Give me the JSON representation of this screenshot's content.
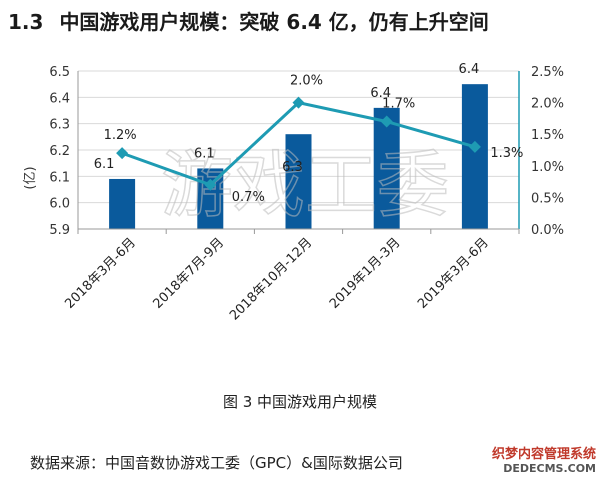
{
  "heading": {
    "number": "1.3",
    "text": "中国游戏用户规模：突破 6.4 亿，仍有上升空间"
  },
  "caption": "图 3  中国游戏用户规模",
  "source": "数据来源：中国音数协游戏工委（GPC）&国际数据公司",
  "watermark": {
    "center": "游戏工委",
    "badge_line1": "织梦内容管理系统",
    "badge_line2": "DEDECMS.COM"
  },
  "colors": {
    "bar": "#0a5a9c",
    "line": "#1e9bb3",
    "axis_right": "#1e9bb3",
    "grid": "#d9d9d9"
  },
  "chart_data": {
    "type": "bar",
    "categories": [
      "2018年3月-6月",
      "2018年7月-9月",
      "2018年10月-12月",
      "2019年1月-3月",
      "2019年3月-6月"
    ],
    "ylabel": "(亿)",
    "ylim": [
      5.9,
      6.5
    ],
    "yticks": [
      "5.9",
      "6.0",
      "6.1",
      "6.2",
      "6.3",
      "6.4",
      "6.5"
    ],
    "y2lim": [
      0,
      0.025
    ],
    "y2ticks": [
      "0.0%",
      "0.5%",
      "1.0%",
      "1.5%",
      "2.0%",
      "2.5%"
    ],
    "series": [
      {
        "type": "bar",
        "values": [
          6.09,
          6.13,
          6.26,
          6.36,
          6.45
        ],
        "labels": [
          "6.1",
          "6.1",
          "6.3",
          "6.4",
          "6.4"
        ]
      },
      {
        "type": "line",
        "axis": "right",
        "values": [
          0.012,
          0.007,
          0.02,
          0.017,
          0.013
        ],
        "labels": [
          "1.2%",
          "0.7%",
          "2.0%",
          "1.7%",
          "1.3%"
        ]
      }
    ]
  }
}
